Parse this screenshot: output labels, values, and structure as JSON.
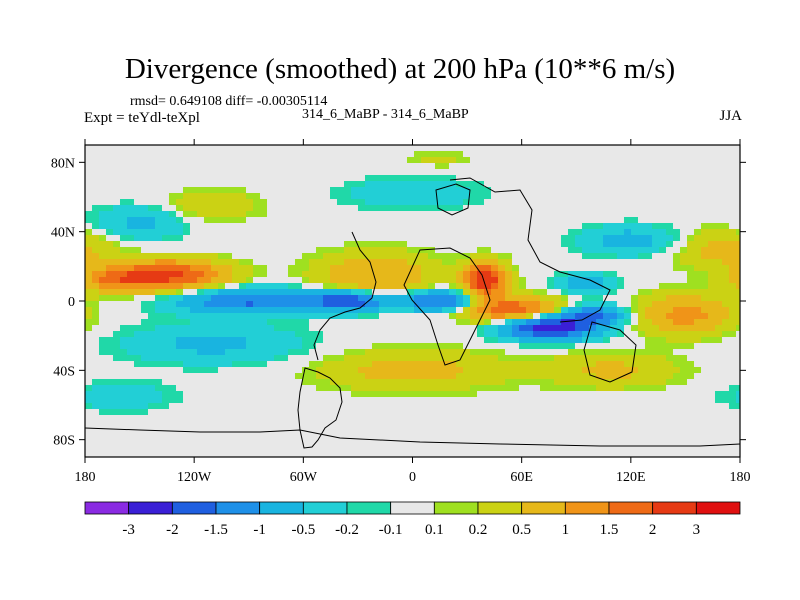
{
  "chart_data": {
    "type": "heatmap",
    "title": "Divergence (smoothed) at 200 hPa (10**6 m/s)",
    "stats": "rmsd= 0.649108  diff= -0.00305114",
    "left_label": "Expt = teYdl-teXpl",
    "center_label": "314_6_MaBP - 314_6_MaBP",
    "right_label": "JJA",
    "x_ticks": [
      "180",
      "120W",
      "60W",
      "0",
      "60E",
      "120E",
      "180"
    ],
    "y_ticks": [
      "80N",
      "40N",
      "0",
      "40S",
      "80S"
    ],
    "xlim": [
      -180,
      180
    ],
    "ylim": [
      -90,
      90
    ],
    "levels": [
      "-3",
      "-2",
      "-1.5",
      "-1",
      "-0.5",
      "-0.2",
      "-0.1",
      "0.1",
      "0.2",
      "0.5",
      "1",
      "1.5",
      "2",
      "3"
    ],
    "colors": [
      "#8a2be2",
      "#3a1fd6",
      "#1f5fe0",
      "#1e90e8",
      "#19b4e0",
      "#22cfd6",
      "#20d8a8",
      "#e8e8e8",
      "#9fe020",
      "#cbd214",
      "#e6b81a",
      "#f09418",
      "#ee6a16",
      "#e63a14",
      "#e01010"
    ],
    "features": [
      {
        "lon": -135,
        "lat": 15,
        "value": 2.2,
        "slon": 22,
        "slat": 6
      },
      {
        "lon": -165,
        "lat": 12,
        "value": 1.0,
        "slon": 14,
        "slat": 5
      },
      {
        "lon": -90,
        "lat": 0,
        "value": -1.6,
        "slon": 28,
        "slat": 5
      },
      {
        "lon": -35,
        "lat": 0,
        "value": -2.0,
        "slon": 14,
        "slat": 4
      },
      {
        "lon": 15,
        "lat": 0,
        "value": -1.8,
        "slon": 16,
        "slat": 4
      },
      {
        "lon": -20,
        "lat": 15,
        "value": 1.0,
        "slon": 22,
        "slat": 9
      },
      {
        "lon": 40,
        "lat": 12,
        "value": 2.6,
        "slon": 8,
        "slat": 7
      },
      {
        "lon": 55,
        "lat": -5,
        "value": 2.0,
        "slon": 18,
        "slat": 5
      },
      {
        "lon": 75,
        "lat": -15,
        "value": -2.5,
        "slon": 18,
        "slat": 5
      },
      {
        "lon": 100,
        "lat": -8,
        "value": -1.5,
        "slon": 12,
        "slat": 4
      },
      {
        "lon": 95,
        "lat": 10,
        "value": -1.0,
        "slon": 10,
        "slat": 4
      },
      {
        "lon": 150,
        "lat": -8,
        "value": 1.2,
        "slon": 18,
        "slat": 8
      },
      {
        "lon": 110,
        "lat": -40,
        "value": 0.6,
        "slon": 25,
        "slat": 7
      },
      {
        "lon": -110,
        "lat": -25,
        "value": -0.6,
        "slon": 35,
        "slat": 8
      },
      {
        "lon": 0,
        "lat": -40,
        "value": 0.7,
        "slon": 35,
        "slat": 8
      },
      {
        "lon": -150,
        "lat": 45,
        "value": -0.6,
        "slon": 18,
        "slat": 7
      },
      {
        "lon": 0,
        "lat": 62,
        "value": -0.5,
        "slon": 25,
        "slat": 6
      },
      {
        "lon": -110,
        "lat": 55,
        "value": 0.5,
        "slon": 18,
        "slat": 6
      },
      {
        "lon": 120,
        "lat": 35,
        "value": -0.7,
        "slon": 20,
        "slat": 6
      },
      {
        "lon": 170,
        "lat": 30,
        "value": 0.7,
        "slon": 18,
        "slat": 8
      },
      {
        "lon": 15,
        "lat": 82,
        "value": 0.3,
        "slon": 12,
        "slat": 3
      },
      {
        "lon": -160,
        "lat": -55,
        "value": -0.4,
        "slon": 20,
        "slat": 6
      }
    ]
  }
}
